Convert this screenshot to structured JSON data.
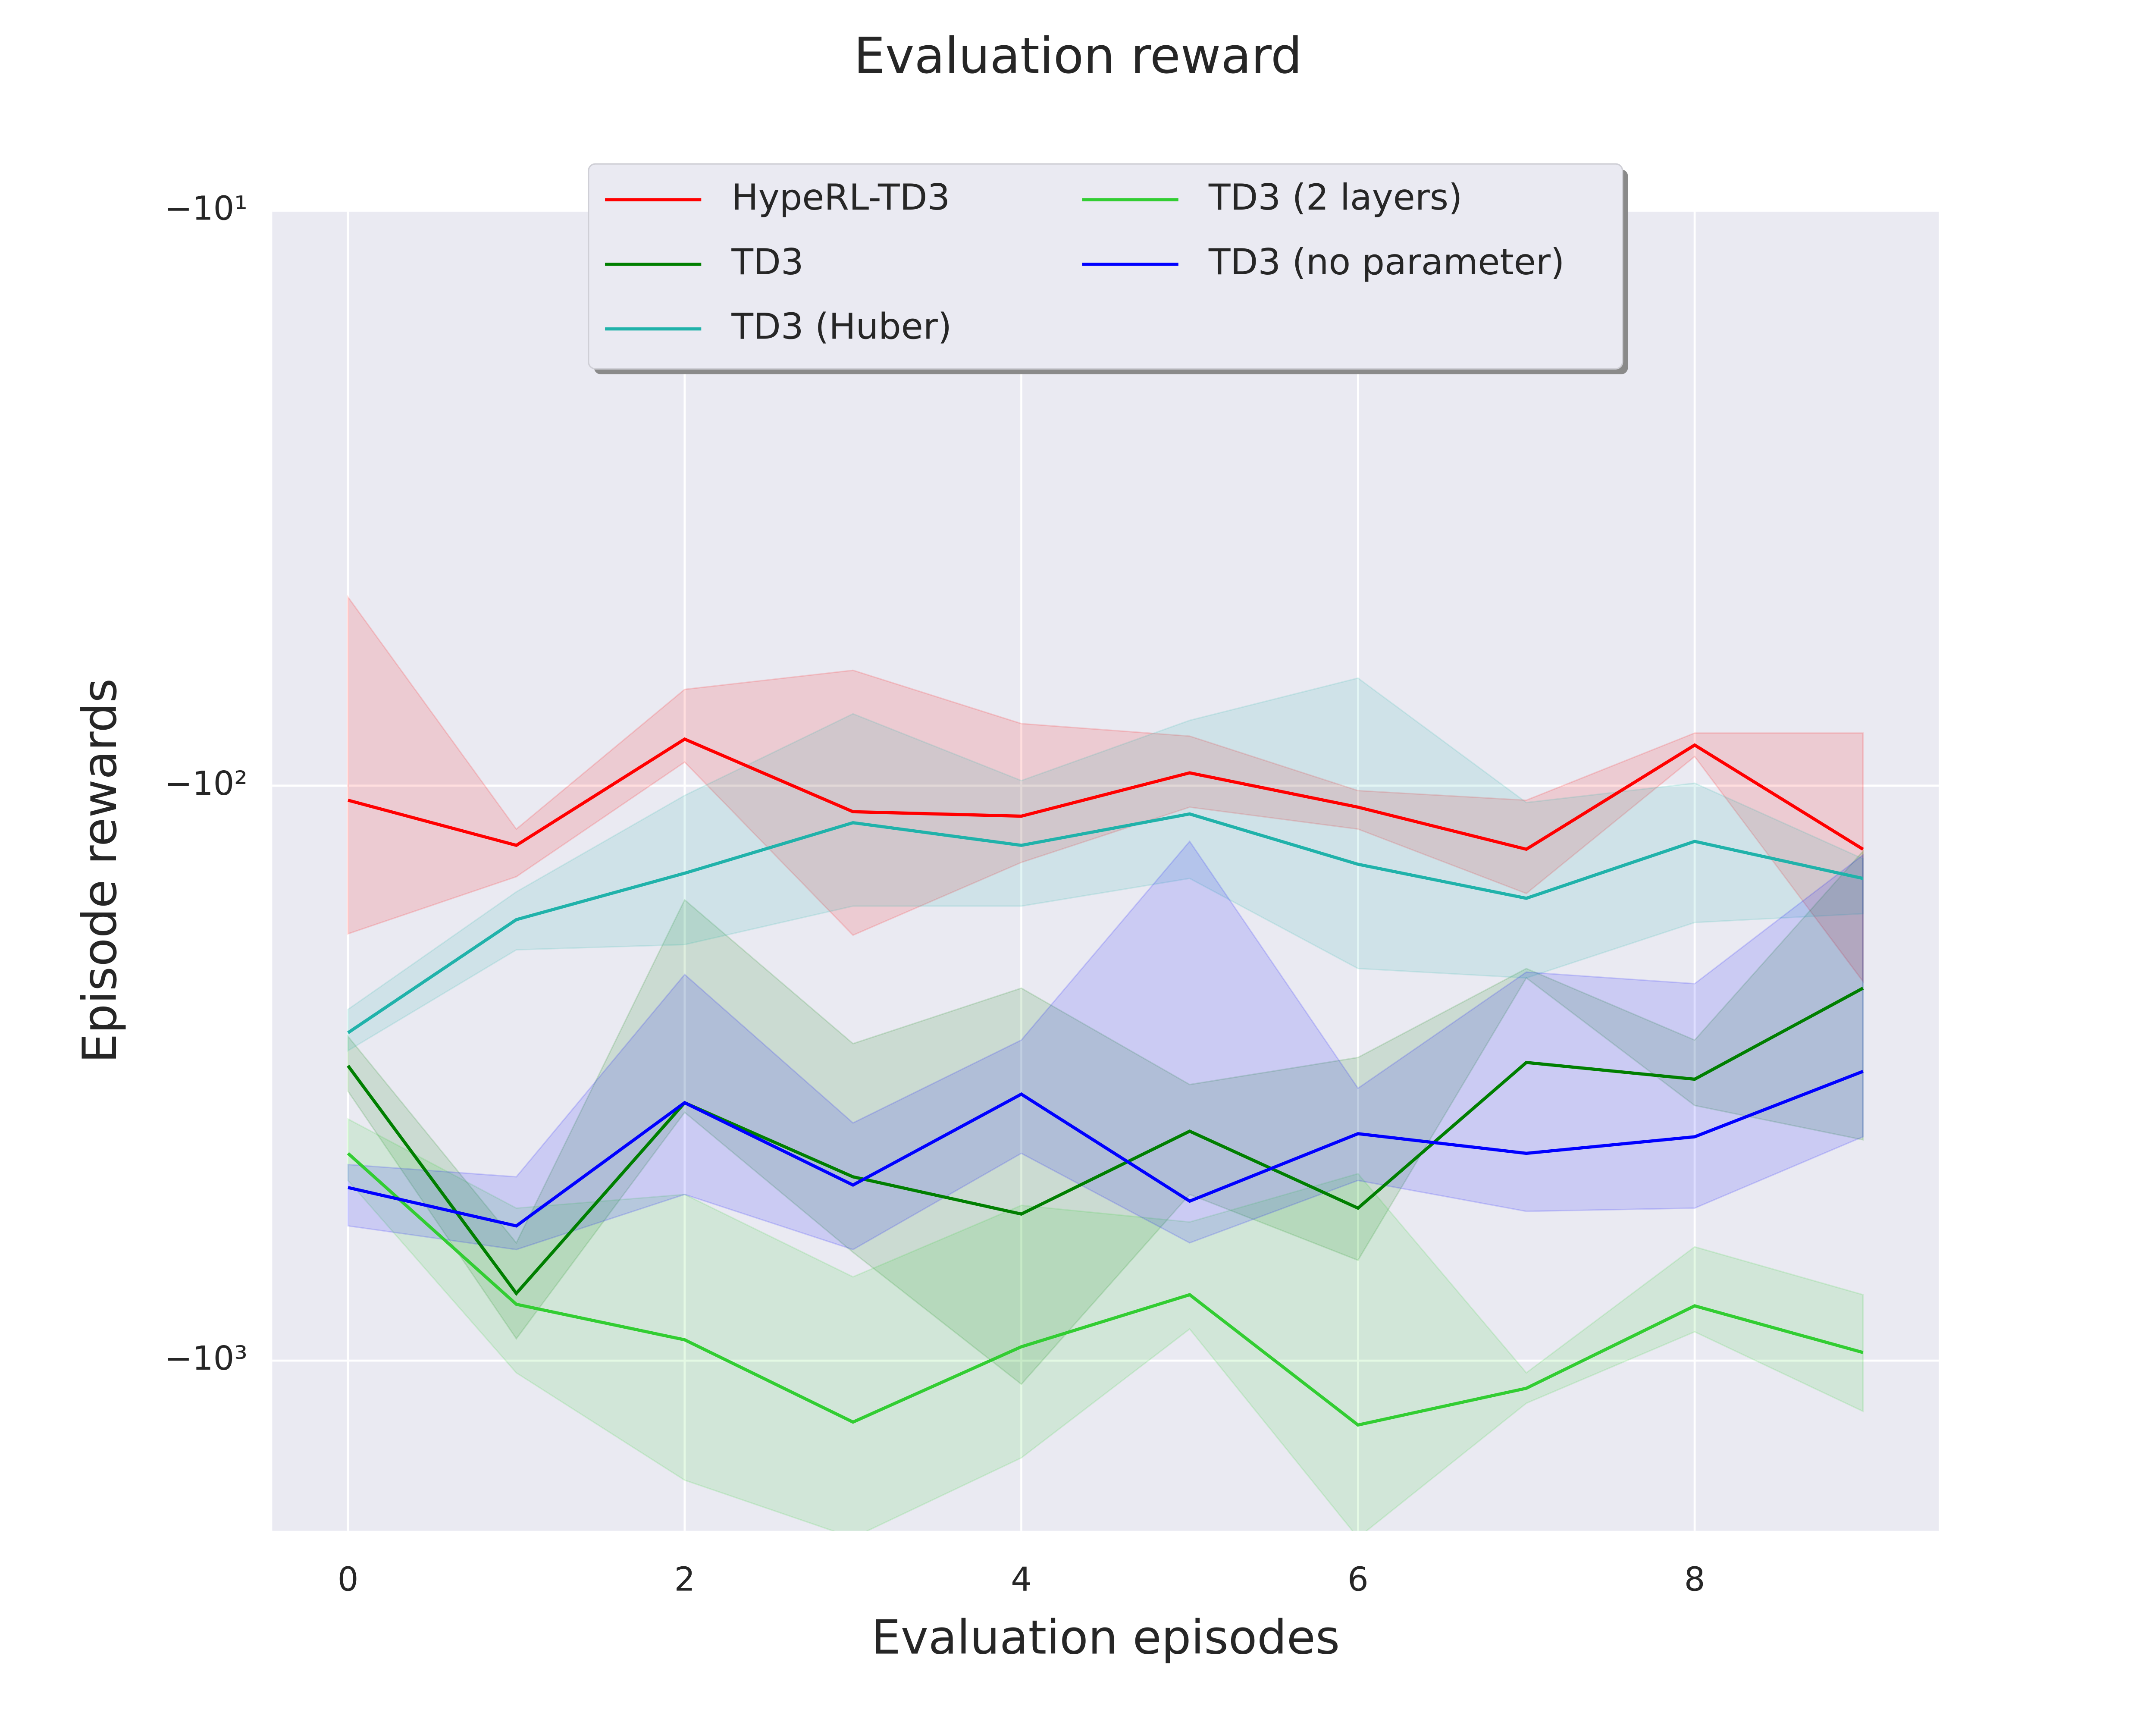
{
  "chart_data": {
    "type": "line",
    "title": "Evaluation reward",
    "x_label": "Evaluation episodes",
    "y_label": "Episode rewards",
    "x": [
      0,
      1,
      2,
      3,
      4,
      5,
      6,
      7,
      8,
      9
    ],
    "xlim": [
      -0.45,
      9.45
    ],
    "xticks": [
      0,
      2,
      4,
      6,
      8
    ],
    "ylim": [
      -10,
      -1977
    ],
    "yscale": "log",
    "yticks": [
      {
        "value": -10,
        "label": "−10¹"
      },
      {
        "value": -100,
        "label": "−10²"
      },
      {
        "value": -1000,
        "label": "−10³"
      }
    ],
    "grid": true,
    "legend": "upper center",
    "series": [
      {
        "name": "HypeRL-TD3",
        "color": "#ff0000",
        "values": [
          -106,
          -127,
          -83,
          -111,
          -113,
          -95,
          -109,
          -129,
          -85,
          -129
        ],
        "upper": [
          -47,
          -119,
          -68,
          -63,
          -78,
          -82,
          -102,
          -106,
          -81,
          -81
        ],
        "lower": [
          -181,
          -144,
          -91,
          -182,
          -136,
          -109,
          -119,
          -154,
          -89,
          -219
        ]
      },
      {
        "name": "TD3",
        "color": "#007f00",
        "values": [
          -307,
          -764,
          -356,
          -479,
          -556,
          -399,
          -543,
          -303,
          -324,
          -225
        ],
        "upper": [
          -273,
          -624,
          -158,
          -281,
          -225,
          -331,
          -297,
          -208,
          -277,
          -130
        ],
        "lower": [
          -340,
          -916,
          -370,
          -648,
          -1099,
          -514,
          -669,
          -216,
          -360,
          -413
        ]
      },
      {
        "name": "TD3 (Huber)",
        "color": "#20b2aa",
        "values": [
          -269,
          -171,
          -142,
          -116,
          -127,
          -112,
          -137,
          -157,
          -125,
          -145
        ],
        "upper": [
          -245,
          -153,
          -104,
          -75,
          -98,
          -77,
          -65,
          -107,
          -99,
          -134
        ],
        "lower": [
          -289,
          -193,
          -189,
          -162,
          -162,
          -145,
          -208,
          -216,
          -173,
          -167
        ]
      },
      {
        "name": "TD3 (2 layers)",
        "color": "#32cd32",
        "values": [
          -436,
          -798,
          -920,
          -1279,
          -946,
          -768,
          -1294,
          -1117,
          -803,
          -968
        ],
        "upper": [
          -380,
          -543,
          -514,
          -715,
          -537,
          -574,
          -473,
          -1050,
          -634,
          -768
        ],
        "lower": [
          -486,
          -1050,
          -1614,
          -2032,
          -1476,
          -881,
          -2032,
          -1186,
          -891,
          -1225
        ]
      },
      {
        "name": "TD3 (no parameter)",
        "color": "#0000ff",
        "values": [
          -500,
          -583,
          -356,
          -495,
          -344,
          -528,
          -403,
          -436,
          -408,
          -314
        ],
        "upper": [
          -456,
          -479,
          -213,
          -386,
          -277,
          -125,
          -336,
          -211,
          -221,
          -132
        ],
        "lower": [
          -583,
          -641,
          -514,
          -641,
          -436,
          -624,
          -486,
          -550,
          -543,
          -408
        ]
      }
    ]
  }
}
